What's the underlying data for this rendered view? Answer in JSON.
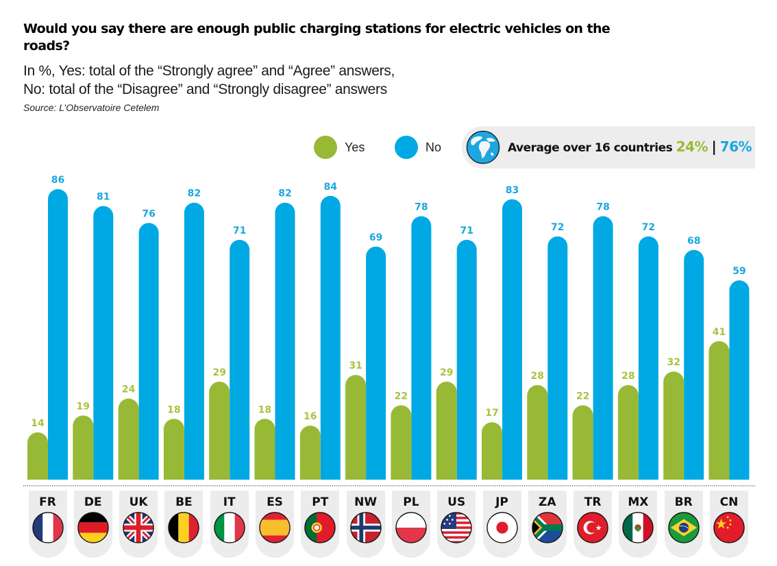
{
  "title": "Would you say there are enough public charging stations for electric vehicles on the roads?",
  "subtitle_lines": [
    "In %, Yes: total of the “Strongly agree” and “Agree” answers,",
    "No: total of the “Disagree” and “Strongly disagree” answers"
  ],
  "source": "Source: L’Observatoire Cetelem",
  "legend": {
    "yes_label": "Yes",
    "no_label": "No",
    "yes_color": "#98b935",
    "no_color": "#00a9e3"
  },
  "average": {
    "label": "Average over 16 countries",
    "yes": "24%",
    "separator": "|",
    "no": "76%",
    "icon": "globe-icon"
  },
  "chart_data": {
    "type": "bar",
    "title": "Would you say there are enough public charging stations for electric vehicles on the roads?",
    "xlabel": "",
    "ylabel": "%",
    "ylim": [
      0,
      100
    ],
    "grid": false,
    "legend_position": "top-right",
    "categories": [
      "FR",
      "DE",
      "UK",
      "BE",
      "IT",
      "ES",
      "PT",
      "NW",
      "PL",
      "US",
      "JP",
      "ZA",
      "TR",
      "MX",
      "BR",
      "CN"
    ],
    "series": [
      {
        "name": "Yes",
        "color": "#98b935",
        "values": [
          14,
          19,
          24,
          18,
          29,
          18,
          16,
          31,
          22,
          29,
          17,
          28,
          22,
          28,
          32,
          41
        ]
      },
      {
        "name": "No",
        "color": "#00a9e3",
        "values": [
          86,
          81,
          76,
          82,
          71,
          82,
          84,
          69,
          78,
          71,
          83,
          72,
          78,
          72,
          68,
          59
        ]
      }
    ],
    "value_label_colors": {
      "Yes": "#a9c23f",
      "No": "#1aa6e0"
    }
  },
  "countries": [
    {
      "code": "FR",
      "flag": "france-flag-icon"
    },
    {
      "code": "DE",
      "flag": "germany-flag-icon"
    },
    {
      "code": "UK",
      "flag": "uk-flag-icon"
    },
    {
      "code": "BE",
      "flag": "belgium-flag-icon"
    },
    {
      "code": "IT",
      "flag": "italy-flag-icon"
    },
    {
      "code": "ES",
      "flag": "spain-flag-icon"
    },
    {
      "code": "PT",
      "flag": "portugal-flag-icon"
    },
    {
      "code": "NW",
      "flag": "norway-flag-icon"
    },
    {
      "code": "PL",
      "flag": "poland-flag-icon"
    },
    {
      "code": "US",
      "flag": "usa-flag-icon"
    },
    {
      "code": "JP",
      "flag": "japan-flag-icon"
    },
    {
      "code": "ZA",
      "flag": "south-africa-flag-icon"
    },
    {
      "code": "TR",
      "flag": "turkey-flag-icon"
    },
    {
      "code": "MX",
      "flag": "mexico-flag-icon"
    },
    {
      "code": "BR",
      "flag": "brazil-flag-icon"
    },
    {
      "code": "CN",
      "flag": "china-flag-icon"
    }
  ]
}
